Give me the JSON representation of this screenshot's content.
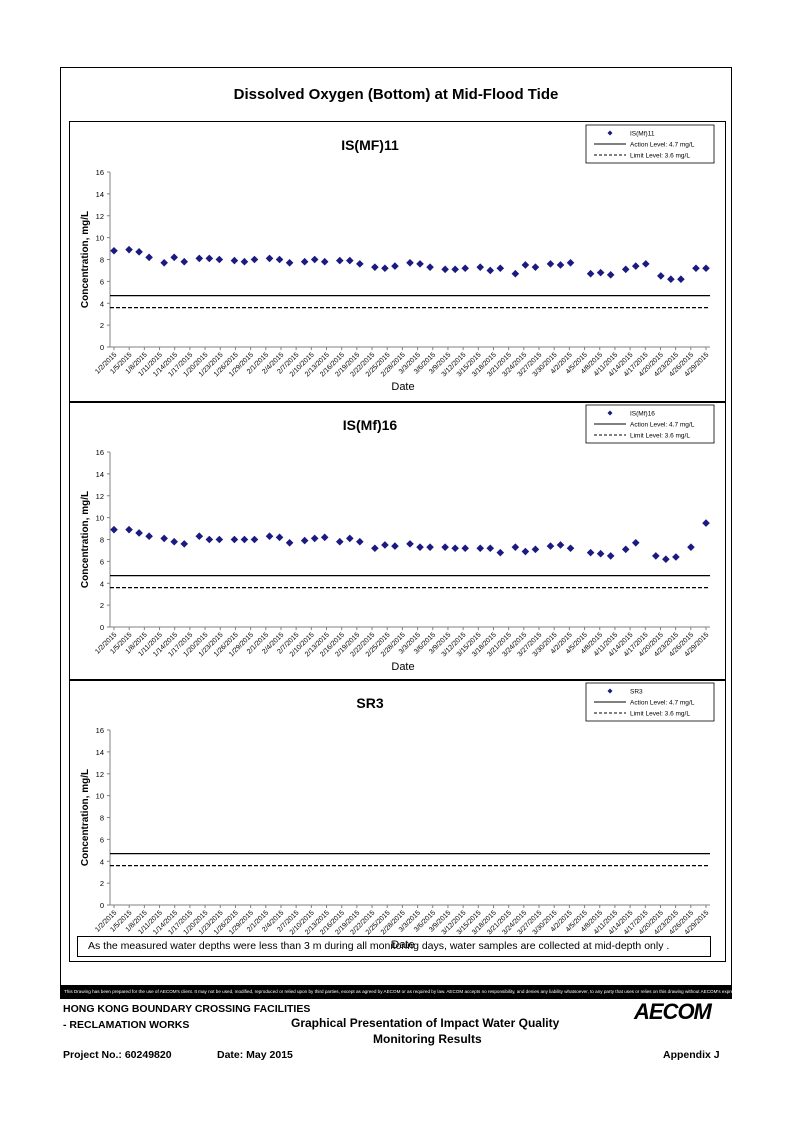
{
  "page_title": "Dissolved Oxygen (Bottom) at Mid-Flood Tide",
  "x_tick_labels": [
    "1/2/2015",
    "1/5/2015",
    "1/8/2015",
    "1/11/2015",
    "1/14/2015",
    "1/17/2015",
    "1/20/2015",
    "1/23/2015",
    "1/26/2015",
    "1/29/2015",
    "2/1/2015",
    "2/4/2015",
    "2/7/2015",
    "2/10/2015",
    "2/13/2015",
    "2/16/2015",
    "2/19/2015",
    "2/22/2015",
    "2/25/2015",
    "2/28/2015",
    "3/3/2015",
    "3/6/2015",
    "3/9/2015",
    "3/12/2015",
    "3/15/2015",
    "3/18/2015",
    "3/21/2015",
    "3/24/2015",
    "3/27/2015",
    "3/30/2015",
    "4/2/2015",
    "4/5/2015",
    "4/8/2015",
    "4/11/2015",
    "4/14/2015",
    "4/17/2015",
    "4/20/2015",
    "4/23/2015",
    "4/26/2015",
    "4/29/2015"
  ],
  "chart_data": [
    {
      "type": "scatter",
      "title": "IS(MF)11",
      "xlabel": "Date",
      "ylabel": "Concentration, mg/L",
      "x_range": [
        "2015-01-02",
        "2015-04-30"
      ],
      "ylim": [
        0,
        16
      ],
      "yticks": [
        0,
        2,
        4,
        6,
        8,
        10,
        12,
        14,
        16
      ],
      "grid": false,
      "legend_position": "top-right",
      "legend": [
        "IS(Mf)11",
        "Action Level: 4.7 mg/L",
        "Limit Level: 3.6 mg/L"
      ],
      "marker_color": "#1a1a80",
      "reference_lines": [
        {
          "name": "Action Level: 4.7 mg/L",
          "value": 4.7,
          "style": "solid"
        },
        {
          "name": "Limit Level: 3.6 mg/L",
          "value": 3.6,
          "style": "dashed"
        }
      ],
      "series": [
        {
          "name": "IS(Mf)11",
          "points": [
            [
              "2015-01-02",
              8.8
            ],
            [
              "2015-01-05",
              8.9
            ],
            [
              "2015-01-07",
              8.7
            ],
            [
              "2015-01-09",
              8.2
            ],
            [
              "2015-01-12",
              7.7
            ],
            [
              "2015-01-14",
              8.2
            ],
            [
              "2015-01-16",
              7.8
            ],
            [
              "2015-01-19",
              8.1
            ],
            [
              "2015-01-21",
              8.1
            ],
            [
              "2015-01-23",
              8.0
            ],
            [
              "2015-01-26",
              7.9
            ],
            [
              "2015-01-28",
              7.8
            ],
            [
              "2015-01-30",
              8.0
            ],
            [
              "2015-02-02",
              8.1
            ],
            [
              "2015-02-04",
              8.0
            ],
            [
              "2015-02-06",
              7.7
            ],
            [
              "2015-02-09",
              7.8
            ],
            [
              "2015-02-11",
              8.0
            ],
            [
              "2015-02-13",
              7.8
            ],
            [
              "2015-02-16",
              7.9
            ],
            [
              "2015-02-18",
              7.9
            ],
            [
              "2015-02-20",
              7.6
            ],
            [
              "2015-02-23",
              7.3
            ],
            [
              "2015-02-25",
              7.2
            ],
            [
              "2015-02-27",
              7.4
            ],
            [
              "2015-03-02",
              7.7
            ],
            [
              "2015-03-04",
              7.6
            ],
            [
              "2015-03-06",
              7.3
            ],
            [
              "2015-03-09",
              7.1
            ],
            [
              "2015-03-11",
              7.1
            ],
            [
              "2015-03-13",
              7.2
            ],
            [
              "2015-03-16",
              7.3
            ],
            [
              "2015-03-18",
              7.0
            ],
            [
              "2015-03-20",
              7.2
            ],
            [
              "2015-03-23",
              6.7
            ],
            [
              "2015-03-25",
              7.5
            ],
            [
              "2015-03-27",
              7.3
            ],
            [
              "2015-03-30",
              7.6
            ],
            [
              "2015-04-01",
              7.5
            ],
            [
              "2015-04-03",
              7.7
            ],
            [
              "2015-04-07",
              6.7
            ],
            [
              "2015-04-09",
              6.8
            ],
            [
              "2015-04-11",
              6.6
            ],
            [
              "2015-04-14",
              7.1
            ],
            [
              "2015-04-16",
              7.4
            ],
            [
              "2015-04-18",
              7.6
            ],
            [
              "2015-04-21",
              6.5
            ],
            [
              "2015-04-23",
              6.2
            ],
            [
              "2015-04-25",
              6.2
            ],
            [
              "2015-04-28",
              7.2
            ],
            [
              "2015-04-30",
              7.2
            ]
          ]
        }
      ]
    },
    {
      "type": "scatter",
      "title": "IS(Mf)16",
      "xlabel": "Date",
      "ylabel": "Concentration, mg/L",
      "x_range": [
        "2015-01-02",
        "2015-04-30"
      ],
      "ylim": [
        0,
        16
      ],
      "yticks": [
        0,
        2,
        4,
        6,
        8,
        10,
        12,
        14,
        16
      ],
      "grid": false,
      "legend_position": "top-right",
      "legend": [
        "IS(Mf)16",
        "Action Level: 4.7 mg/L",
        "Limit Level: 3.6 mg/L"
      ],
      "marker_color": "#1a1a80",
      "reference_lines": [
        {
          "name": "Action Level: 4.7 mg/L",
          "value": 4.7,
          "style": "solid"
        },
        {
          "name": "Limit Level: 3.6 mg/L",
          "value": 3.6,
          "style": "dashed"
        }
      ],
      "series": [
        {
          "name": "IS(Mf)16",
          "points": [
            [
              "2015-01-02",
              8.9
            ],
            [
              "2015-01-05",
              8.9
            ],
            [
              "2015-01-07",
              8.6
            ],
            [
              "2015-01-09",
              8.3
            ],
            [
              "2015-01-12",
              8.1
            ],
            [
              "2015-01-14",
              7.8
            ],
            [
              "2015-01-16",
              7.6
            ],
            [
              "2015-01-19",
              8.3
            ],
            [
              "2015-01-21",
              8.0
            ],
            [
              "2015-01-23",
              8.0
            ],
            [
              "2015-01-26",
              8.0
            ],
            [
              "2015-01-28",
              8.0
            ],
            [
              "2015-01-30",
              8.0
            ],
            [
              "2015-02-02",
              8.3
            ],
            [
              "2015-02-04",
              8.2
            ],
            [
              "2015-02-06",
              7.7
            ],
            [
              "2015-02-09",
              7.9
            ],
            [
              "2015-02-11",
              8.1
            ],
            [
              "2015-02-13",
              8.2
            ],
            [
              "2015-02-16",
              7.8
            ],
            [
              "2015-02-18",
              8.1
            ],
            [
              "2015-02-20",
              7.8
            ],
            [
              "2015-02-23",
              7.2
            ],
            [
              "2015-02-25",
              7.5
            ],
            [
              "2015-02-27",
              7.4
            ],
            [
              "2015-03-02",
              7.6
            ],
            [
              "2015-03-04",
              7.3
            ],
            [
              "2015-03-06",
              7.3
            ],
            [
              "2015-03-09",
              7.3
            ],
            [
              "2015-03-11",
              7.2
            ],
            [
              "2015-03-13",
              7.2
            ],
            [
              "2015-03-16",
              7.2
            ],
            [
              "2015-03-18",
              7.2
            ],
            [
              "2015-03-20",
              6.8
            ],
            [
              "2015-03-23",
              7.3
            ],
            [
              "2015-03-25",
              6.9
            ],
            [
              "2015-03-27",
              7.1
            ],
            [
              "2015-03-30",
              7.4
            ],
            [
              "2015-04-01",
              7.5
            ],
            [
              "2015-04-03",
              7.2
            ],
            [
              "2015-04-07",
              6.8
            ],
            [
              "2015-04-09",
              6.7
            ],
            [
              "2015-04-11",
              6.5
            ],
            [
              "2015-04-14",
              7.1
            ],
            [
              "2015-04-16",
              7.7
            ],
            [
              "2015-04-20",
              6.5
            ],
            [
              "2015-04-22",
              6.2
            ],
            [
              "2015-04-24",
              6.4
            ],
            [
              "2015-04-27",
              7.3
            ],
            [
              "2015-04-30",
              9.5
            ]
          ]
        }
      ]
    },
    {
      "type": "scatter",
      "title": "SR3",
      "xlabel": "Date",
      "ylabel": "Concentration, mg/L",
      "x_range": [
        "2015-01-02",
        "2015-04-30"
      ],
      "ylim": [
        0,
        16
      ],
      "yticks": [
        0,
        2,
        4,
        6,
        8,
        10,
        12,
        14,
        16
      ],
      "grid": false,
      "legend_position": "top-right",
      "legend": [
        "SR3",
        "Action Level: 4.7 mg/L",
        "Limit Level: 3.6 mg/L"
      ],
      "marker_color": "#1a1a80",
      "reference_lines": [
        {
          "name": "Action Level: 4.7 mg/L",
          "value": 4.7,
          "style": "solid"
        },
        {
          "name": "Limit Level: 3.6 mg/L",
          "value": 3.6,
          "style": "dashed"
        }
      ],
      "series": [
        {
          "name": "SR3",
          "points": []
        }
      ]
    }
  ],
  "note": "As the measured water depths were less than 3 m during all monitoring days, water samples are collected  at  mid-depth only .",
  "disclaimer": "This Drawing has been prepared for the use of AECOM's client. It may not be used, modified, reproduced or relied upon by third parties, except as agreed by AECOM or as required by law. AECOM accepts no responsibility, and denies any liability whatsoever, to any party that uses or relies on this drawing without AECOM's express written consent.",
  "footer": {
    "project_line1": "HONG KONG BOUNDARY CROSSING FACILITIES",
    "project_line2": "- RECLAMATION WORKS",
    "drawing_title_line1": "Graphical Presentation of Impact Water Quality",
    "drawing_title_line2": "Monitoring Results",
    "project_no": "Project No.: 60249820",
    "date": "Date: May 2015",
    "appendix": "Appendix J",
    "logo_text": "AECOM"
  }
}
